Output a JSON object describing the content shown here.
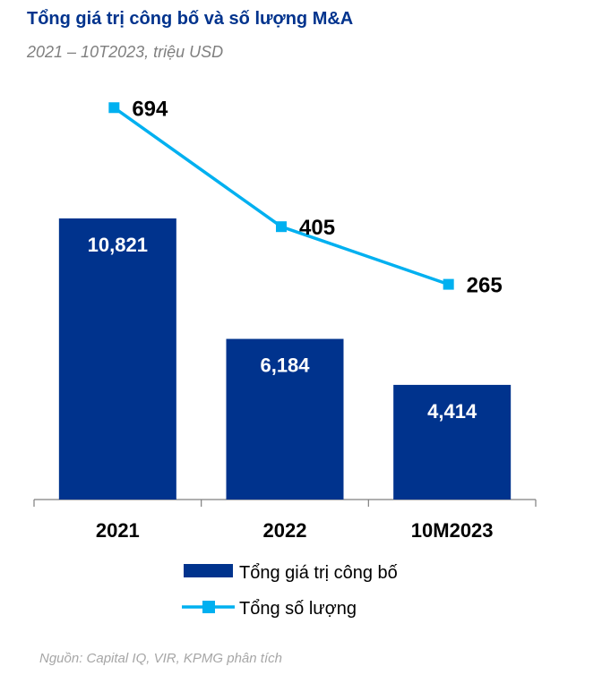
{
  "chart_data": {
    "type": "bar+line",
    "title": "Tổng giá trị công bố và số lượng M&A",
    "subtitle": "2021 – 10T2023, triệu USD",
    "categories": [
      "2021",
      "2022",
      "10M2023"
    ],
    "series": [
      {
        "name": "Tổng giá trị công bố",
        "type": "bar",
        "values": [
          10821,
          6184,
          4414
        ],
        "labels": [
          "10,821",
          "6,184",
          "4,414"
        ],
        "color": "#00338d"
      },
      {
        "name": "Tổng số lượng",
        "type": "line",
        "values": [
          694,
          405,
          265
        ],
        "labels": [
          "694",
          "405",
          "265"
        ],
        "color": "#00b0f0"
      }
    ],
    "legend_position": "bottom",
    "grid": false,
    "source": "Nguồn: Capital IQ, VIR, KPMG phân tích"
  }
}
